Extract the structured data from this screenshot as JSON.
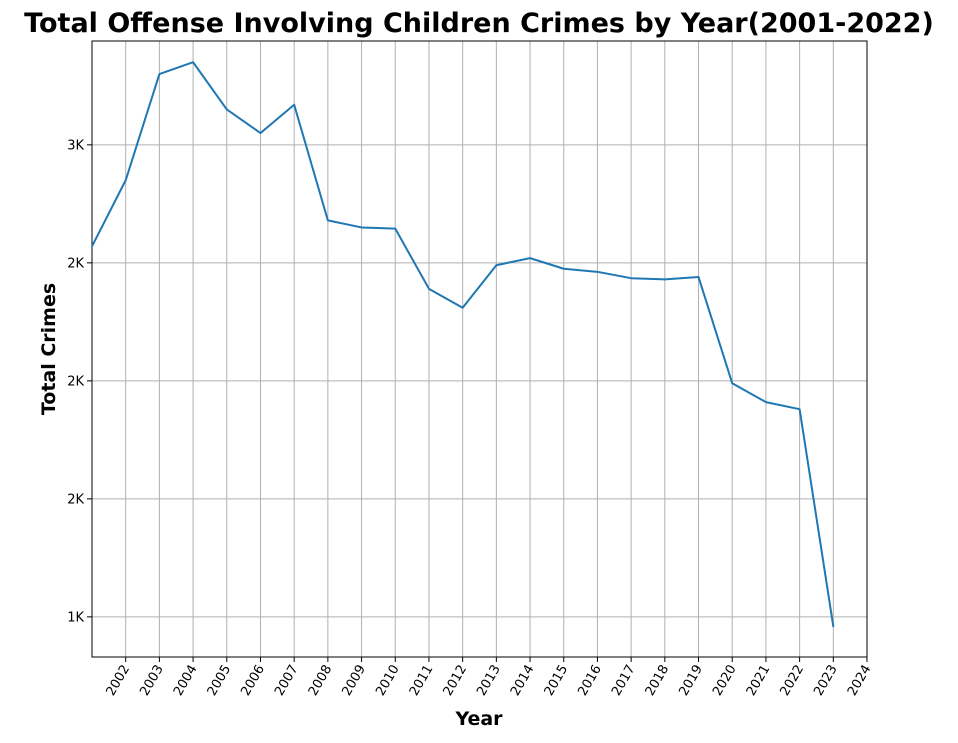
{
  "chart_data": {
    "type": "line",
    "title": "Total Offense Involving Children Crimes by Year(2001-2022)",
    "xlabel": "Year",
    "ylabel": "Total Crimes",
    "x": [
      2001,
      2002,
      2003,
      2004,
      2005,
      2006,
      2007,
      2008,
      2009,
      2010,
      2011,
      2012,
      2013,
      2014,
      2015,
      2016,
      2017,
      2018,
      2019,
      2020,
      2021,
      2022,
      2023
    ],
    "series": [
      {
        "values": [
          2570,
          2850,
          3300,
          3350,
          3150,
          3050,
          3170,
          2680,
          2650,
          2645,
          2390,
          2310,
          2490,
          2520,
          2475,
          2462,
          2435,
          2430,
          2440,
          1990,
          1910,
          1880,
          960
        ],
        "color": "#1f77b4"
      }
    ],
    "xticks": [
      "2002",
      "2003",
      "2004",
      "2005",
      "2006",
      "2007",
      "2008",
      "2009",
      "2010",
      "2011",
      "2012",
      "2013",
      "2014",
      "2015",
      "2016",
      "2017",
      "2018",
      "2019",
      "2020",
      "2021",
      "2022",
      "2023",
      "2024"
    ],
    "xtick_values": [
      2002,
      2003,
      2004,
      2005,
      2006,
      2007,
      2008,
      2009,
      2010,
      2011,
      2012,
      2013,
      2014,
      2015,
      2016,
      2017,
      2018,
      2019,
      2020,
      2021,
      2022,
      2023,
      2024
    ],
    "yticks": [
      "1K",
      "2K",
      "2K",
      "2K",
      "3K"
    ],
    "ytick_values": [
      1000,
      1500,
      2000,
      2500,
      3000
    ],
    "xlim": [
      2001,
      2024
    ],
    "ylim": [
      830,
      3440
    ],
    "grid": true,
    "legend": "none"
  }
}
